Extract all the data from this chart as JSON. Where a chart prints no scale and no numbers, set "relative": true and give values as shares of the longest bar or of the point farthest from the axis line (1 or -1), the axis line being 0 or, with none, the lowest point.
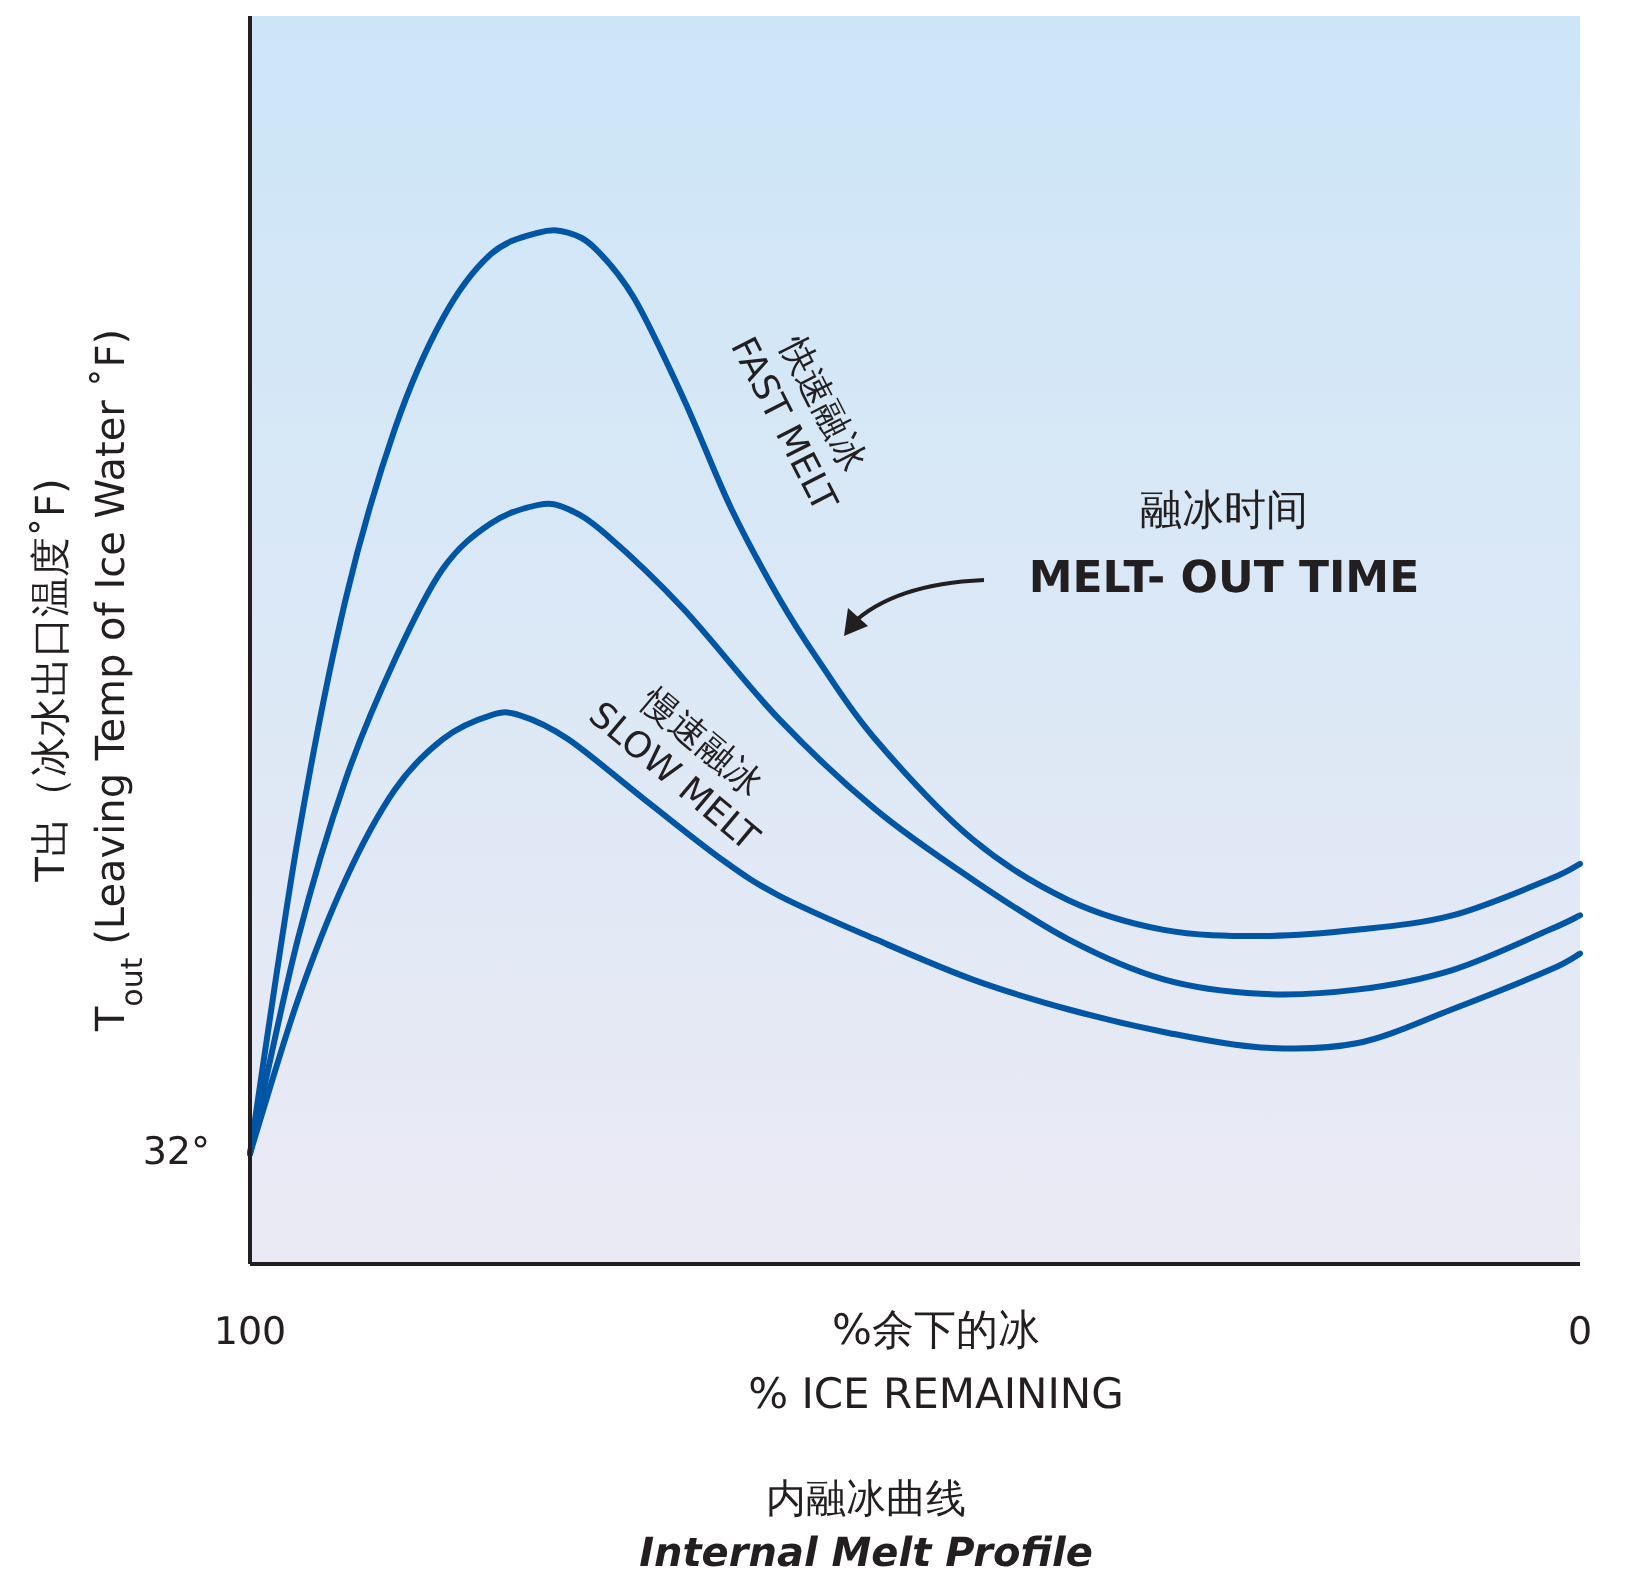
{
  "chart_data": {
    "type": "line",
    "title": "内融冰曲线",
    "subtitle": "Internal Melt Profile",
    "xlabel": "%余下的冰\n% ICE REMAINING",
    "ylabel": "T出（冰水出口温度˚F)\nT$_{out}$ (Leaving Temp of Ice Water ˚F)",
    "relative": true,
    "xlim": [
      100,
      0
    ],
    "xticks": [
      100,
      0
    ],
    "annotations": [
      {
        "text": "32°",
        "x": 100,
        "y": 0.107
      },
      "融冰时间\nMELT- OUT TIME"
    ],
    "series": [
      {
        "name": "快速融冰\nFAST MELT",
        "color": "#0055a5",
        "x": [
          100,
          96.4,
          92.8,
          89.1,
          85.5,
          81.9,
          78.3,
          76.1,
          74.0,
          71.1,
          67.4,
          63.8,
          60.2,
          57.3,
          53.0,
          45.7,
          38.5,
          31.3,
          24.0,
          16.8,
          9.6,
          2.3,
          0
        ],
        "values": [
          0.107,
          0.412,
          0.645,
          0.81,
          0.917,
          0.979,
          1.0,
          1.0,
          0.984,
          0.936,
          0.839,
          0.732,
          0.645,
          0.586,
          0.509,
          0.412,
          0.353,
          0.324,
          0.318,
          0.324,
          0.338,
          0.373,
          0.388
        ]
      },
      {
        "color": "#0055a5",
        "x": [
          100,
          96.4,
          92.8,
          89.1,
          85.5,
          81.9,
          78.3,
          76.1,
          73.2,
          67.4,
          60.2,
          53.0,
          45.7,
          38.5,
          31.3,
          24.0,
          16.8,
          9.6,
          2.3,
          0
        ],
        "values": [
          0.107,
          0.315,
          0.47,
          0.586,
          0.674,
          0.718,
          0.736,
          0.732,
          0.707,
          0.635,
          0.528,
          0.441,
          0.373,
          0.315,
          0.276,
          0.262,
          0.266,
          0.285,
          0.324,
          0.338
        ]
      },
      {
        "name": "慢速融冰\nSLOW MELT",
        "color": "#0055a5",
        "x": [
          100,
          96.4,
          92.8,
          89.1,
          85.5,
          81.9,
          79.7,
          76.1,
          70.3,
          64.5,
          60.2,
          53.0,
          45.7,
          38.5,
          31.3,
          24.0,
          16.8,
          9.6,
          2.3,
          0
        ],
        "values": [
          0.107,
          0.256,
          0.373,
          0.46,
          0.509,
          0.532,
          0.532,
          0.509,
          0.45,
          0.392,
          0.357,
          0.315,
          0.276,
          0.247,
          0.225,
          0.21,
          0.214,
          0.247,
          0.285,
          0.301
        ]
      }
    ]
  }
}
